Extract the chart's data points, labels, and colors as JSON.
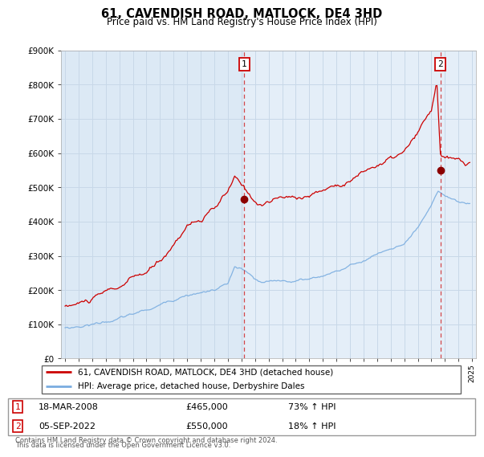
{
  "title": "61, CAVENDISH ROAD, MATLOCK, DE4 3HD",
  "subtitle": "Price paid vs. HM Land Registry's House Price Index (HPI)",
  "red_label": "61, CAVENDISH ROAD, MATLOCK, DE4 3HD (detached house)",
  "blue_label": "HPI: Average price, detached house, Derbyshire Dales",
  "annotation1": {
    "num": "1",
    "date": "18-MAR-2008",
    "price": "£465,000",
    "pct": "73% ↑ HPI",
    "x_year": 2008.21
  },
  "annotation2": {
    "num": "2",
    "date": "05-SEP-2022",
    "price": "£550,000",
    "pct": "18% ↑ HPI",
    "x_year": 2022.68
  },
  "footnote1": "Contains HM Land Registry data © Crown copyright and database right 2024.",
  "footnote2": "This data is licensed under the Open Government Licence v3.0.",
  "ylim": [
    0,
    900000
  ],
  "yticks": [
    0,
    100000,
    200000,
    300000,
    400000,
    500000,
    600000,
    700000,
    800000,
    900000
  ],
  "ytick_labels": [
    "£0",
    "£100K",
    "£200K",
    "£300K",
    "£400K",
    "£500K",
    "£600K",
    "£700K",
    "£800K",
    "£900K"
  ],
  "xlim_start": 1994.7,
  "xlim_end": 2025.3,
  "bg_color": "#dce9f5",
  "bg_color_right": "#e8f2fa",
  "red_color": "#cc0000",
  "blue_color": "#7aade0",
  "grid_color": "#c8d8e8",
  "ann1_sale_price": 465000,
  "ann2_sale_price": 550000
}
